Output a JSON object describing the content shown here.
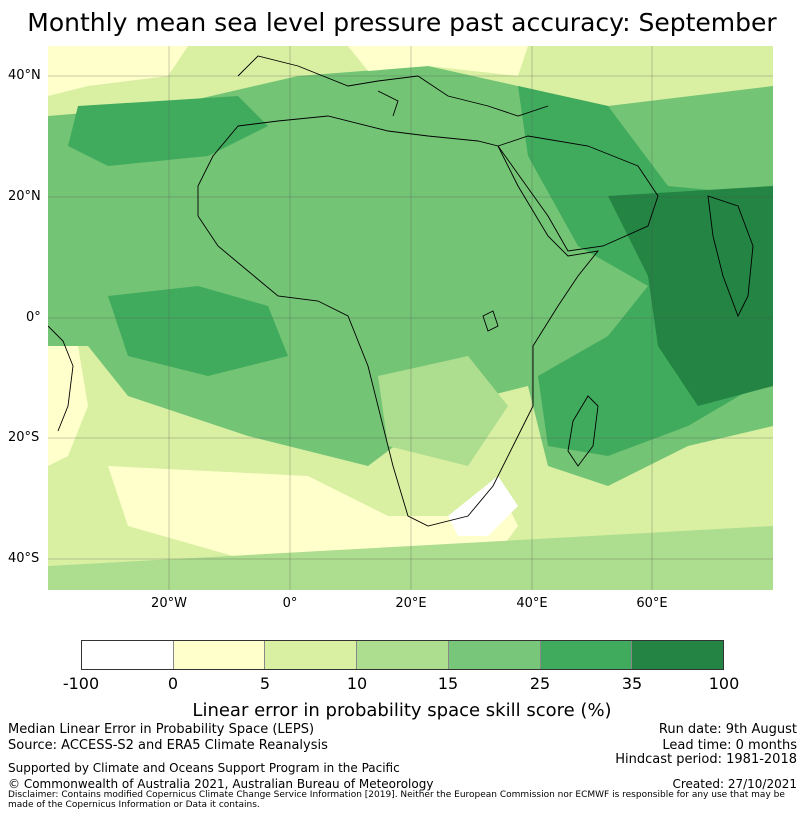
{
  "title": "Monthly mean sea level pressure past accuracy: September",
  "map": {
    "lat_ticks": [
      "40°N",
      "20°N",
      "0°",
      "20°S",
      "40°S"
    ],
    "lon_ticks": [
      "20°W",
      "0°",
      "20°E",
      "40°E",
      "60°E"
    ],
    "colors": {
      "ocean_base": "#74c476",
      "land_line": "#000000"
    }
  },
  "colorbar": {
    "label": "Linear error in probability space skill score (%)",
    "ticks": [
      "-100",
      "0",
      "5",
      "10",
      "15",
      "25",
      "35",
      "100"
    ],
    "colors": [
      "#ffffff",
      "#ffffcc",
      "#d9f0a3",
      "#addd8e",
      "#78c679",
      "#41ab5d",
      "#238443"
    ]
  },
  "footer": {
    "left_line1": "Median Linear Error in Probability Space (LEPS)",
    "left_line2": "Source: ACCESS-S2 and ERA5 Climate Reanalysis",
    "left_line3": "Supported by Climate and Oceans Support Program in the Pacific",
    "left_line4": "© Commonwealth of Australia 2021, Australian Bureau of Meteorology",
    "right_line1": "Run date: 9th August",
    "right_line2": "Lead time: 0 months",
    "right_line3": "Hindcast period: 1981-2018",
    "right_line4": "Created: 27/10/2021",
    "disclaimer": "Disclaimer: Contains modified Copernicus Climate Change Service Information [2019]. Neither the European Commission nor ECMWF is responsible for any use that may be made of the Copernicus Information or Data it contains."
  }
}
